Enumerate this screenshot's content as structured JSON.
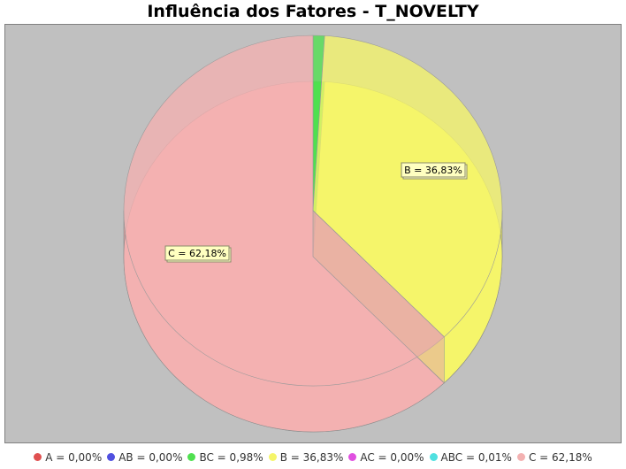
{
  "chart_data": {
    "type": "pie",
    "title": "Influência dos Fatores - T_NOVELTY",
    "slices": [
      {
        "name": "A",
        "value": 0.0,
        "label": "A = 0,00%",
        "color": "#e05050"
      },
      {
        "name": "AB",
        "value": 0.0,
        "label": "AB = 0,00%",
        "color": "#5050e0"
      },
      {
        "name": "BC",
        "value": 0.98,
        "label": "BC = 0,98%",
        "color": "#50e050"
      },
      {
        "name": "B",
        "value": 36.83,
        "label": "B = 36,83%",
        "color": "#f5f56a"
      },
      {
        "name": "AC",
        "value": 0.0,
        "label": "AC = 0,00%",
        "color": "#e050e0"
      },
      {
        "name": "ABC",
        "value": 0.01,
        "label": "ABC = 0,01%",
        "color": "#50e0e0"
      },
      {
        "name": "C",
        "value": 62.18,
        "label": "C = 62,18%",
        "color": "#f3b1b1"
      }
    ],
    "slice_labels_shown": [
      "B",
      "C"
    ],
    "legend_position": "bottom",
    "background_color": "#c0c0c0",
    "rendering": "3d"
  }
}
